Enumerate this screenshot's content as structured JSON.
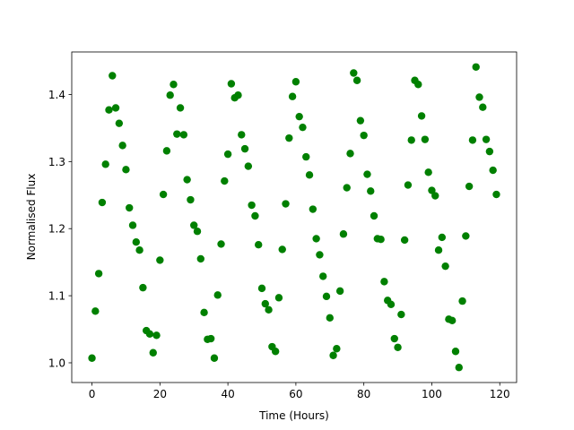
{
  "chart_data": {
    "type": "scatter",
    "xlabel": "Time (Hours)",
    "ylabel": "Normalised Flux",
    "x": [
      0,
      1,
      2,
      3,
      4,
      5,
      6,
      7,
      8,
      9,
      10,
      11,
      12,
      13,
      14,
      15,
      16,
      17,
      18,
      19,
      20,
      21,
      22,
      23,
      24,
      25,
      26,
      27,
      28,
      29,
      30,
      31,
      32,
      33,
      34,
      35,
      36,
      37,
      38,
      39,
      40,
      41,
      42,
      43,
      44,
      45,
      46,
      47,
      48,
      49,
      50,
      51,
      52,
      53,
      54,
      55,
      56,
      57,
      58,
      59,
      60,
      61,
      62,
      63,
      64,
      65,
      66,
      67,
      68,
      69,
      70,
      71,
      72,
      73,
      74,
      75,
      76,
      77,
      78,
      79,
      80,
      81,
      82,
      83,
      84,
      85,
      86,
      87,
      88,
      89,
      90,
      91,
      92,
      93,
      94,
      95,
      96,
      97,
      98,
      99,
      100,
      101,
      102,
      103,
      104,
      105,
      106,
      107,
      108,
      109,
      110,
      111,
      112,
      113,
      114,
      115,
      116,
      117,
      118,
      119
    ],
    "values": [
      1.007,
      1.077,
      1.133,
      1.239,
      1.296,
      1.377,
      1.428,
      1.38,
      1.357,
      1.324,
      1.288,
      1.231,
      1.205,
      1.18,
      1.168,
      1.112,
      1.048,
      1.043,
      1.015,
      1.041,
      1.153,
      1.251,
      1.316,
      1.399,
      1.415,
      1.341,
      1.38,
      1.34,
      1.273,
      1.243,
      1.205,
      1.196,
      1.155,
      1.075,
      1.035,
      1.036,
      1.007,
      1.101,
      1.177,
      1.271,
      1.311,
      1.416,
      1.395,
      1.399,
      1.34,
      1.319,
      1.293,
      1.235,
      1.219,
      1.176,
      1.111,
      1.088,
      1.079,
      1.024,
      1.017,
      1.097,
      1.169,
      1.237,
      1.335,
      1.397,
      1.419,
      1.367,
      1.351,
      1.307,
      1.28,
      1.229,
      1.185,
      1.161,
      1.129,
      1.099,
      1.067,
      1.011,
      1.021,
      1.107,
      1.192,
      1.261,
      1.312,
      1.432,
      1.421,
      1.361,
      1.339,
      1.281,
      1.256,
      1.219,
      1.185,
      1.184,
      1.121,
      1.093,
      1.087,
      1.036,
      1.023,
      1.072,
      1.183,
      1.265,
      1.332,
      1.421,
      1.415,
      1.368,
      1.333,
      1.284,
      1.257,
      1.249,
      1.168,
      1.187,
      1.144,
      1.065,
      1.063,
      1.017,
      0.993,
      1.092,
      1.189,
      1.263,
      1.332,
      1.441,
      1.396,
      1.381,
      1.333,
      1.315,
      1.287,
      1.251
    ],
    "color": "#008000",
    "xlim": [
      -5.95,
      124.95
    ],
    "xticks": [
      0,
      20,
      40,
      60,
      80,
      100,
      120
    ],
    "ylim": [
      0.9706,
      1.4634
    ],
    "yticks": [
      {
        "value": 1,
        "label": "1.0"
      },
      1.1,
      1.2,
      1.3,
      1.4
    ]
  }
}
